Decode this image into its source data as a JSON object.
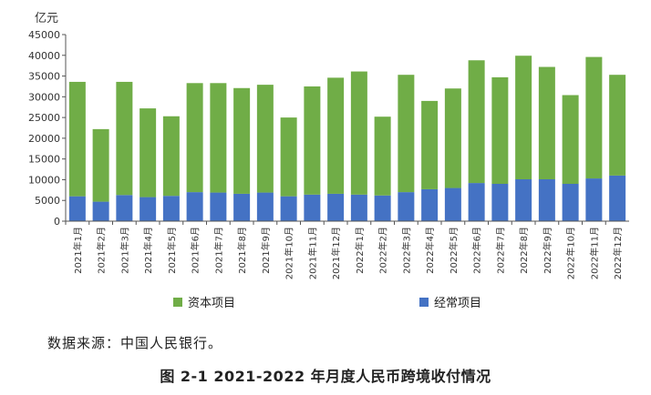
{
  "chart_data": {
    "type": "bar",
    "stacked": true,
    "unit_label": "亿元",
    "categories": [
      "2021年1月",
      "2021年2月",
      "2021年3月",
      "2021年4月",
      "2021年5月",
      "2021年6月",
      "2021年7月",
      "2021年8月",
      "2021年9月",
      "2021年10月",
      "2021年11月",
      "2021年12月",
      "2022年1月",
      "2022年2月",
      "2022年3月",
      "2022年4月",
      "2022年5月",
      "2022年6月",
      "2022年7月",
      "2022年8月",
      "2022年9月",
      "2022年10月",
      "2022年11月",
      "2022年12月"
    ],
    "series": [
      {
        "name": "经常项目",
        "color": "#4472c4",
        "values": [
          6000,
          4700,
          6300,
          5800,
          6100,
          7000,
          6900,
          6600,
          6900,
          6000,
          6400,
          6600,
          6400,
          6200,
          7000,
          7700,
          8000,
          9200,
          9000,
          10100,
          10100,
          9000,
          10300,
          11000
        ]
      },
      {
        "name": "资本项目",
        "color": "#70ad47",
        "values": [
          27600,
          17500,
          27300,
          21400,
          19200,
          26300,
          26400,
          25500,
          26000,
          19000,
          26100,
          28000,
          29700,
          19000,
          28300,
          21300,
          24000,
          29600,
          25700,
          29800,
          27100,
          21400,
          29300,
          24300
        ]
      }
    ],
    "yticks": [
      0,
      5000,
      10000,
      15000,
      20000,
      25000,
      30000,
      35000,
      40000,
      45000
    ],
    "ylim": [
      0,
      45000
    ],
    "legend_position": "bottom",
    "grid": false
  },
  "source_text": "数据来源：中国人民银行。",
  "caption": "图 2-1 2021-2022 年月度人民币跨境收付情况"
}
